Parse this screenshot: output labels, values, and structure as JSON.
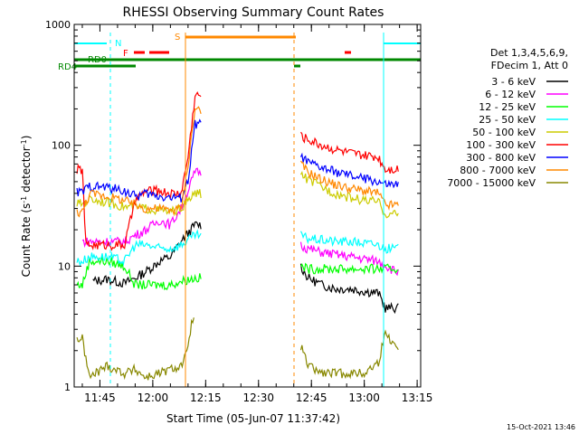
{
  "chart_data": {
    "type": "line",
    "title": "RHESSI Observing Summary Count Rates",
    "xlabel": "Start Time (05-Jun-07 11:37:42)",
    "ylabel_parts": [
      "Count Rate (s",
      "-1",
      " detector",
      "-1",
      ")"
    ],
    "y_scale": "log",
    "ylim": [
      1,
      1000
    ],
    "y_ticks": [
      1,
      10,
      100,
      1000
    ],
    "y_tick_labels": [
      "1",
      "10",
      "100",
      "1000"
    ],
    "xlim_minutes": [
      11.0,
      94.0
    ],
    "x_ticks": [
      {
        "min": 45,
        "label": "11:45"
      },
      {
        "min": 60,
        "label": "12:00"
      },
      {
        "min": 75,
        "label": "12:15"
      },
      {
        "min": 90,
        "label": "12:30"
      },
      {
        "min": 105,
        "label": "12:45"
      },
      {
        "min": 120,
        "label": "13:00"
      },
      {
        "min": 135,
        "label": "13:15"
      }
    ],
    "legend_header": [
      "Det 1,3,4,5,6,9,",
      "FDecim 1, Att 0"
    ],
    "legend_position": "right",
    "series": [
      {
        "name": "3 - 6 keV",
        "color": "#000000",
        "points": [
          [
            38.5,
            null
          ],
          [
            43,
            7.5
          ],
          [
            47,
            7.8
          ],
          [
            52,
            7.2
          ],
          [
            55,
            8
          ],
          [
            58,
            9
          ],
          [
            62,
            11
          ],
          [
            65,
            12
          ],
          [
            68,
            16
          ],
          [
            72,
            22
          ],
          [
            74,
            null
          ],
          [
            102,
            10
          ],
          [
            104,
            8
          ],
          [
            108,
            7
          ],
          [
            112,
            6.5
          ],
          [
            116,
            6.5
          ],
          [
            120,
            6.2
          ],
          [
            124,
            6
          ],
          [
            126,
            4.5
          ],
          [
            129,
            4.5
          ],
          [
            130,
            null
          ]
        ]
      },
      {
        "name": "6 - 12 keV",
        "color": "#ff00ff",
        "points": [
          [
            38.5,
            null
          ],
          [
            40,
            16
          ],
          [
            43,
            16
          ],
          [
            47,
            16
          ],
          [
            52,
            16
          ],
          [
            55,
            18
          ],
          [
            58,
            20
          ],
          [
            62,
            24
          ],
          [
            65,
            22
          ],
          [
            68,
            30
          ],
          [
            72,
            60
          ],
          [
            74,
            null
          ],
          [
            102,
            15
          ],
          [
            104,
            14
          ],
          [
            108,
            13
          ],
          [
            112,
            12.5
          ],
          [
            116,
            12
          ],
          [
            120,
            11.5
          ],
          [
            124,
            11
          ],
          [
            129,
            9
          ],
          [
            130,
            null
          ]
        ]
      },
      {
        "name": "12 - 25 keV",
        "color": "#00ff00",
        "points": [
          [
            38.5,
            7
          ],
          [
            40,
            7
          ],
          [
            42,
            11
          ],
          [
            47,
            11
          ],
          [
            52,
            10
          ],
          [
            55,
            7
          ],
          [
            58,
            7
          ],
          [
            62,
            7
          ],
          [
            65,
            7
          ],
          [
            68,
            7.5
          ],
          [
            72,
            8
          ],
          [
            74,
            null
          ],
          [
            102,
            10
          ],
          [
            104,
            9.5
          ],
          [
            108,
            9.5
          ],
          [
            112,
            9.5
          ],
          [
            116,
            9.5
          ],
          [
            120,
            9.5
          ],
          [
            124,
            9.5
          ],
          [
            126,
            9.5
          ],
          [
            129,
            9.5
          ],
          [
            130,
            null
          ]
        ]
      },
      {
        "name": "25 - 50 keV",
        "color": "#00ffff",
        "points": [
          [
            38.5,
            11
          ],
          [
            40,
            11
          ],
          [
            42,
            12
          ],
          [
            47,
            12
          ],
          [
            52,
            11
          ],
          [
            55,
            15
          ],
          [
            58,
            15
          ],
          [
            62,
            14
          ],
          [
            65,
            14
          ],
          [
            68,
            15
          ],
          [
            72,
            18
          ],
          [
            74,
            null
          ],
          [
            102,
            18
          ],
          [
            104,
            17
          ],
          [
            108,
            16.5
          ],
          [
            112,
            16
          ],
          [
            116,
            16
          ],
          [
            120,
            15.5
          ],
          [
            124,
            15
          ],
          [
            126,
            14
          ],
          [
            129,
            14
          ],
          [
            130,
            null
          ]
        ]
      },
      {
        "name": "50 - 100 keV",
        "color": "#cccc00",
        "points": [
          [
            38.5,
            33
          ],
          [
            40,
            33
          ],
          [
            42,
            36
          ],
          [
            47,
            34
          ],
          [
            52,
            31
          ],
          [
            55,
            31
          ],
          [
            58,
            30
          ],
          [
            62,
            29
          ],
          [
            65,
            28
          ],
          [
            68,
            30
          ],
          [
            72,
            40
          ],
          [
            74,
            null
          ],
          [
            102,
            58
          ],
          [
            104,
            52
          ],
          [
            108,
            45
          ],
          [
            112,
            40
          ],
          [
            116,
            37
          ],
          [
            120,
            35
          ],
          [
            124,
            34
          ],
          [
            126,
            27
          ],
          [
            129,
            27
          ],
          [
            130,
            null
          ]
        ]
      },
      {
        "name": "100 - 300 keV",
        "color": "#ff0000",
        "points": [
          [
            38.5,
            63
          ],
          [
            40,
            63
          ],
          [
            41,
            15
          ],
          [
            47,
            15
          ],
          [
            52,
            15
          ],
          [
            55,
            35
          ],
          [
            58,
            42
          ],
          [
            62,
            42
          ],
          [
            65,
            40
          ],
          [
            68,
            40
          ],
          [
            70,
            80
          ],
          [
            72,
            260
          ],
          [
            74,
            null
          ],
          [
            102,
            120
          ],
          [
            104,
            112
          ],
          [
            108,
            100
          ],
          [
            112,
            92
          ],
          [
            116,
            86
          ],
          [
            120,
            82
          ],
          [
            124,
            80
          ],
          [
            126,
            64
          ],
          [
            129,
            64
          ],
          [
            130,
            null
          ]
        ]
      },
      {
        "name": "300 - 800 keV",
        "color": "#0000ff",
        "points": [
          [
            38.5,
            41
          ],
          [
            40,
            41
          ],
          [
            42,
            46
          ],
          [
            47,
            45
          ],
          [
            52,
            42
          ],
          [
            55,
            38
          ],
          [
            58,
            40
          ],
          [
            62,
            38
          ],
          [
            65,
            37
          ],
          [
            68,
            37
          ],
          [
            70,
            50
          ],
          [
            72,
            150
          ],
          [
            74,
            null
          ],
          [
            102,
            82
          ],
          [
            104,
            72
          ],
          [
            108,
            65
          ],
          [
            112,
            60
          ],
          [
            116,
            56
          ],
          [
            120,
            53
          ],
          [
            124,
            50
          ],
          [
            126,
            47
          ],
          [
            129,
            47
          ],
          [
            130,
            null
          ]
        ]
      },
      {
        "name": "800 - 7000 keV",
        "color": "#ff8800",
        "points": [
          [
            38.5,
            28
          ],
          [
            40,
            28
          ],
          [
            42,
            40
          ],
          [
            47,
            38
          ],
          [
            52,
            35
          ],
          [
            55,
            32
          ],
          [
            58,
            30
          ],
          [
            62,
            30
          ],
          [
            65,
            29
          ],
          [
            68,
            30
          ],
          [
            70,
            70
          ],
          [
            72,
            200
          ],
          [
            74,
            null
          ],
          [
            102,
            70
          ],
          [
            104,
            60
          ],
          [
            108,
            52
          ],
          [
            112,
            47
          ],
          [
            116,
            44
          ],
          [
            120,
            42
          ],
          [
            124,
            40
          ],
          [
            126,
            32
          ],
          [
            129,
            32
          ],
          [
            130,
            null
          ]
        ]
      },
      {
        "name": "7000 - 15000 keV",
        "color": "#888800",
        "points": [
          [
            38.5,
            2.5
          ],
          [
            40,
            2.5
          ],
          [
            42,
            1.2
          ],
          [
            47,
            1.5
          ],
          [
            52,
            1.3
          ],
          [
            55,
            1.4
          ],
          [
            58,
            1.2
          ],
          [
            62,
            1.3
          ],
          [
            65,
            1.4
          ],
          [
            68,
            1.5
          ],
          [
            70,
            2
          ],
          [
            71,
            3.5
          ],
          [
            72,
            null
          ],
          [
            101,
            null
          ],
          [
            102,
            2.2
          ],
          [
            104,
            1.5
          ],
          [
            108,
            1.3
          ],
          [
            112,
            1.3
          ],
          [
            116,
            1.3
          ],
          [
            120,
            1.3
          ],
          [
            124,
            1.6
          ],
          [
            126,
            2.8
          ],
          [
            129,
            2.2
          ],
          [
            130,
            null
          ]
        ]
      }
    ],
    "flags": [
      {
        "label": "N",
        "color": "#00ffff"
      },
      {
        "label": "F",
        "color": "#ff0000"
      },
      {
        "label": "S",
        "color": "#ff8800"
      },
      {
        "label": "RD0",
        "color": "#008800"
      },
      {
        "label": "RD4",
        "color": "#008800"
      }
    ]
  },
  "footer_timestamp": "15-Oct-2021 13:46"
}
